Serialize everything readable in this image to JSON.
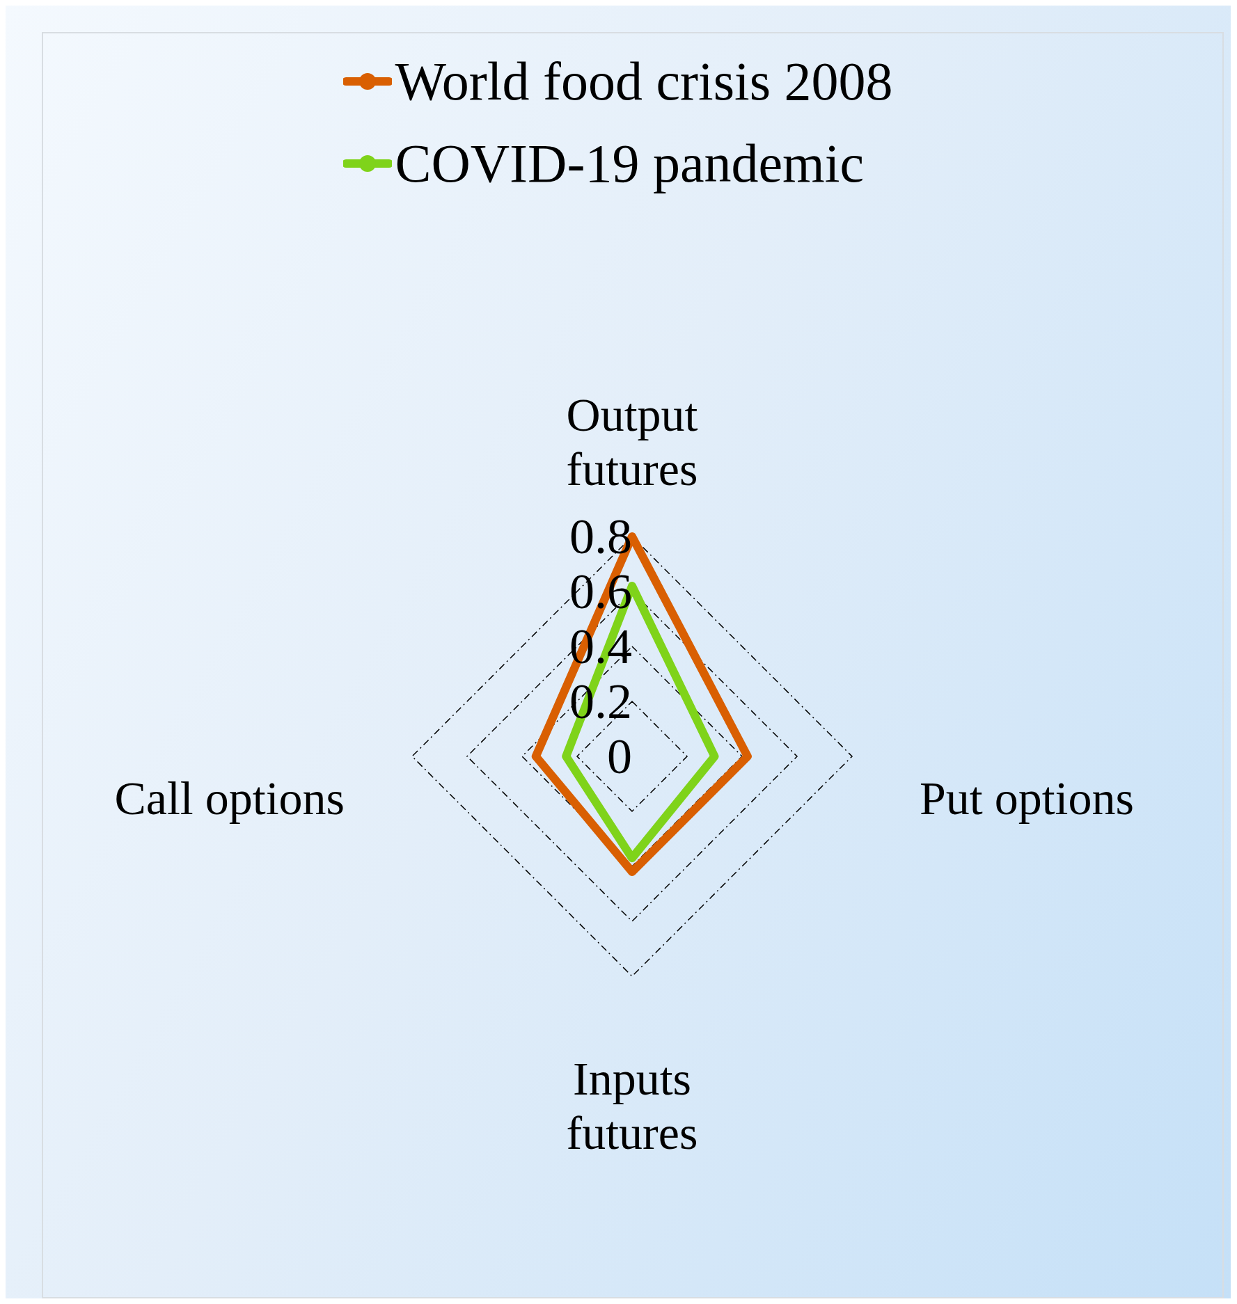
{
  "chart_data": {
    "type": "radar",
    "categories": [
      "Output futures",
      "Put options",
      "Inputs futures",
      "Call options"
    ],
    "series": [
      {
        "name": "World food crisis 2008",
        "color": "#d95f02",
        "values": [
          0.8,
          0.42,
          0.42,
          0.35
        ]
      },
      {
        "name": "COVID-19 pandemic",
        "color": "#7fd31a",
        "values": [
          0.62,
          0.3,
          0.37,
          0.24
        ]
      }
    ],
    "ylim": [
      0,
      0.8
    ],
    "yticks": [
      0,
      0.2,
      0.4,
      0.6,
      0.8
    ],
    "grid": true,
    "legend": "top",
    "marker": "circle",
    "line_style": "solid"
  }
}
